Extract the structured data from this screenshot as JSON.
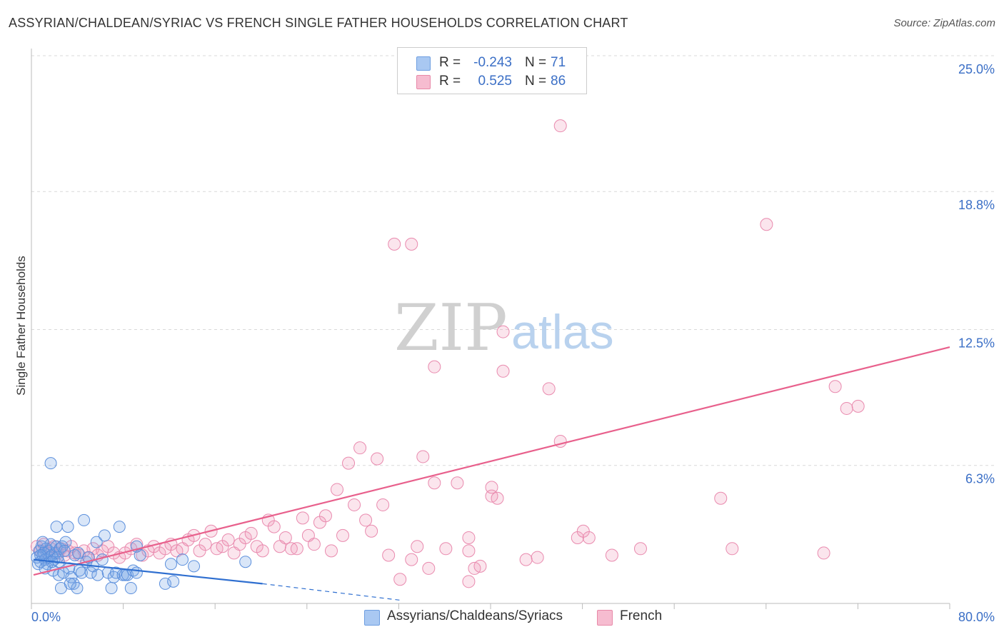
{
  "title": "ASSYRIAN/CHALDEAN/SYRIAC VS FRENCH SINGLE FATHER HOUSEHOLDS CORRELATION CHART",
  "source": "Source: ZipAtlas.com",
  "watermark": {
    "zip": "ZIP",
    "atlas": "atlas"
  },
  "legend": {
    "rows": [
      {
        "r_label": "R =",
        "r_value": "-0.243",
        "n_label": "N =",
        "n_value": "71",
        "color": "#a9c8f2",
        "border": "#6e9ee0"
      },
      {
        "r_label": "R =",
        "r_value": "0.525",
        "n_label": "N =",
        "n_value": "86",
        "color": "#f6bcd0",
        "border": "#e889a8"
      }
    ]
  },
  "bottom_legend": [
    {
      "label": "Assyrians/Chaldeans/Syriacs",
      "color": "#a9c8f2",
      "border": "#6e9ee0"
    },
    {
      "label": "French",
      "color": "#f6bcd0",
      "border": "#e889a8"
    }
  ],
  "colors": {
    "blue_fill": "rgba(120,165,230,0.28)",
    "blue_stroke": "#5b8fdc",
    "blue_line": "#2f6fd0",
    "pink_fill": "rgba(240,150,185,0.25)",
    "pink_stroke": "#e98aae",
    "pink_line": "#e8608c",
    "axis_label": "#3b6fc6",
    "grid": "#d8d8d8"
  },
  "chart_data": {
    "type": "scatter",
    "title": "ASSYRIAN/CHALDEAN/SYRIAC VS FRENCH SINGLE FATHER HOUSEHOLDS CORRELATION CHART",
    "xlabel": "",
    "ylabel": "Single Father Households",
    "xlim": [
      0,
      80
    ],
    "ylim": [
      0,
      25
    ],
    "x_tick_labels": [
      "0.0%",
      "80.0%"
    ],
    "y_ticks": [
      6.3,
      12.5,
      18.8,
      25.0
    ],
    "y_tick_labels": [
      "6.3%",
      "12.5%",
      "18.8%",
      "25.0%"
    ],
    "grid": true,
    "series": [
      {
        "name": "Assyrians/Chaldeans/Syriacs",
        "r": -0.243,
        "n": 71,
        "trend": {
          "x1": 0,
          "y1": 2.0,
          "x2": 20,
          "y2": 0.9,
          "dash_to_x": 32,
          "dash_to_y": 0.15
        },
        "points": [
          [
            0.3,
            2.1
          ],
          [
            0.5,
            2.4
          ],
          [
            0.6,
            1.9
          ],
          [
            0.7,
            2.6
          ],
          [
            0.8,
            2.2
          ],
          [
            0.9,
            2.3
          ],
          [
            1.0,
            2.0
          ],
          [
            1.1,
            2.5
          ],
          [
            1.2,
            1.8
          ],
          [
            1.3,
            2.4
          ],
          [
            1.4,
            2.1
          ],
          [
            1.5,
            2.7
          ],
          [
            1.6,
            2.2
          ],
          [
            1.7,
            1.5
          ],
          [
            1.8,
            2.0
          ],
          [
            1.9,
            2.3
          ],
          [
            2.0,
            2.6
          ],
          [
            2.1,
            2.1
          ],
          [
            2.2,
            1.9
          ],
          [
            2.3,
            2.5
          ],
          [
            1.5,
            6.4
          ],
          [
            2.0,
            3.5
          ],
          [
            2.2,
            1.3
          ],
          [
            2.4,
            0.7
          ],
          [
            2.6,
            1.4
          ],
          [
            2.8,
            2.8
          ],
          [
            3.0,
            3.5
          ],
          [
            3.1,
            1.6
          ],
          [
            3.3,
            1.2
          ],
          [
            3.5,
            0.9
          ],
          [
            3.6,
            2.2
          ],
          [
            3.8,
            0.7
          ],
          [
            4.0,
            1.5
          ],
          [
            4.2,
            1.4
          ],
          [
            4.4,
            3.8
          ],
          [
            4.6,
            1.9
          ],
          [
            5.0,
            1.4
          ],
          [
            5.2,
            1.7
          ],
          [
            5.5,
            2.8
          ],
          [
            5.6,
            1.3
          ],
          [
            6.0,
            2.0
          ],
          [
            6.2,
            3.1
          ],
          [
            6.5,
            1.4
          ],
          [
            6.8,
            0.7
          ],
          [
            7.0,
            1.2
          ],
          [
            7.2,
            1.4
          ],
          [
            7.5,
            3.5
          ],
          [
            7.8,
            1.3
          ],
          [
            8.0,
            1.3
          ],
          [
            8.2,
            1.3
          ],
          [
            8.5,
            0.7
          ],
          [
            8.7,
            1.5
          ],
          [
            9.0,
            1.4
          ],
          [
            9.3,
            2.2
          ],
          [
            9.0,
            2.6
          ],
          [
            2.5,
            2.6
          ],
          [
            0.4,
            1.8
          ],
          [
            0.8,
            2.8
          ],
          [
            1.0,
            1.6
          ],
          [
            3.2,
            0.9
          ],
          [
            1.6,
            1.9
          ],
          [
            2.7,
            2.4
          ],
          [
            4.8,
            2.1
          ],
          [
            0.6,
            2.2
          ],
          [
            11.5,
            0.9
          ],
          [
            12.0,
            1.8
          ],
          [
            12.2,
            1.0
          ],
          [
            13.0,
            2.0
          ],
          [
            14.0,
            1.7
          ],
          [
            18.5,
            1.9
          ],
          [
            3.9,
            2.3
          ]
        ]
      },
      {
        "name": "French",
        "r": 0.525,
        "n": 86,
        "trend": {
          "x1": 0,
          "y1": 1.3,
          "x2": 80,
          "y2": 11.7
        },
        "points": [
          [
            0.3,
            2.6
          ],
          [
            0.6,
            2.4
          ],
          [
            0.9,
            2.7
          ],
          [
            1.2,
            2.3
          ],
          [
            1.5,
            2.5
          ],
          [
            1.8,
            2.6
          ],
          [
            2.1,
            2.3
          ],
          [
            2.4,
            2.5
          ],
          [
            2.7,
            2.2
          ],
          [
            3.0,
            2.4
          ],
          [
            3.3,
            2.6
          ],
          [
            3.6,
            2.3
          ],
          [
            4.0,
            2.2
          ],
          [
            4.4,
            2.4
          ],
          [
            4.8,
            2.1
          ],
          [
            5.2,
            2.5
          ],
          [
            5.6,
            2.2
          ],
          [
            6.0,
            2.4
          ],
          [
            6.5,
            2.6
          ],
          [
            7.0,
            2.3
          ],
          [
            7.5,
            2.1
          ],
          [
            8.0,
            2.3
          ],
          [
            8.5,
            2.5
          ],
          [
            9.0,
            2.7
          ],
          [
            9.5,
            2.2
          ],
          [
            10.0,
            2.4
          ],
          [
            10.5,
            2.6
          ],
          [
            11.0,
            2.3
          ],
          [
            11.5,
            2.5
          ],
          [
            12.0,
            2.7
          ],
          [
            12.5,
            2.4
          ],
          [
            13.0,
            2.5
          ],
          [
            13.5,
            2.9
          ],
          [
            14.0,
            3.1
          ],
          [
            14.5,
            2.4
          ],
          [
            15.0,
            2.7
          ],
          [
            15.5,
            3.3
          ],
          [
            16.0,
            2.5
          ],
          [
            16.5,
            2.6
          ],
          [
            17.0,
            2.9
          ],
          [
            17.5,
            2.3
          ],
          [
            18.0,
            2.7
          ],
          [
            18.5,
            3.0
          ],
          [
            19.0,
            3.2
          ],
          [
            19.5,
            2.6
          ],
          [
            20.0,
            2.4
          ],
          [
            20.5,
            3.8
          ],
          [
            21.0,
            3.5
          ],
          [
            21.5,
            2.6
          ],
          [
            22.0,
            3.0
          ],
          [
            22.5,
            2.5
          ],
          [
            23.0,
            2.5
          ],
          [
            23.5,
            3.9
          ],
          [
            24.0,
            3.1
          ],
          [
            24.5,
            2.7
          ],
          [
            25.0,
            3.7
          ],
          [
            25.5,
            4.0
          ],
          [
            26.0,
            2.4
          ],
          [
            26.5,
            5.2
          ],
          [
            27.0,
            3.1
          ],
          [
            27.5,
            6.4
          ],
          [
            28.0,
            4.5
          ],
          [
            28.5,
            7.1
          ],
          [
            29.0,
            3.8
          ],
          [
            29.5,
            3.3
          ],
          [
            30.0,
            6.6
          ],
          [
            30.5,
            4.5
          ],
          [
            31.0,
            2.2
          ],
          [
            31.5,
            16.4
          ],
          [
            32.0,
            1.1
          ],
          [
            33.0,
            2.0
          ],
          [
            34.0,
            6.7
          ],
          [
            35.0,
            5.5
          ],
          [
            36.0,
            2.5
          ],
          [
            37.0,
            5.5
          ],
          [
            38.0,
            1.0
          ],
          [
            38.5,
            1.6
          ],
          [
            39.0,
            1.7
          ],
          [
            40.0,
            4.9
          ],
          [
            40.5,
            4.8
          ],
          [
            38.0,
            2.4
          ],
          [
            44.0,
            2.1
          ],
          [
            47.5,
            3.0
          ],
          [
            48.0,
            3.3
          ],
          [
            50.5,
            2.2
          ],
          [
            53.0,
            2.5
          ]
        ]
      }
    ],
    "extra_points_french": [
      [
        33.5,
        2.6
      ],
      [
        34.5,
        1.6
      ],
      [
        38.0,
        3.0
      ],
      [
        40.0,
        5.3
      ],
      [
        41.0,
        12.4
      ],
      [
        45.0,
        9.8
      ],
      [
        46.0,
        7.4
      ],
      [
        48.5,
        3.0
      ],
      [
        43.0,
        2.0
      ],
      [
        60.0,
        4.8
      ],
      [
        61.0,
        2.5
      ],
      [
        64.0,
        17.3
      ],
      [
        69.0,
        2.3
      ],
      [
        70.0,
        9.9
      ],
      [
        71.0,
        8.9
      ],
      [
        72.0,
        9.0
      ],
      [
        46.0,
        21.8
      ],
      [
        41.0,
        10.6
      ],
      [
        35.0,
        10.8
      ],
      [
        33.0,
        16.4
      ]
    ]
  }
}
